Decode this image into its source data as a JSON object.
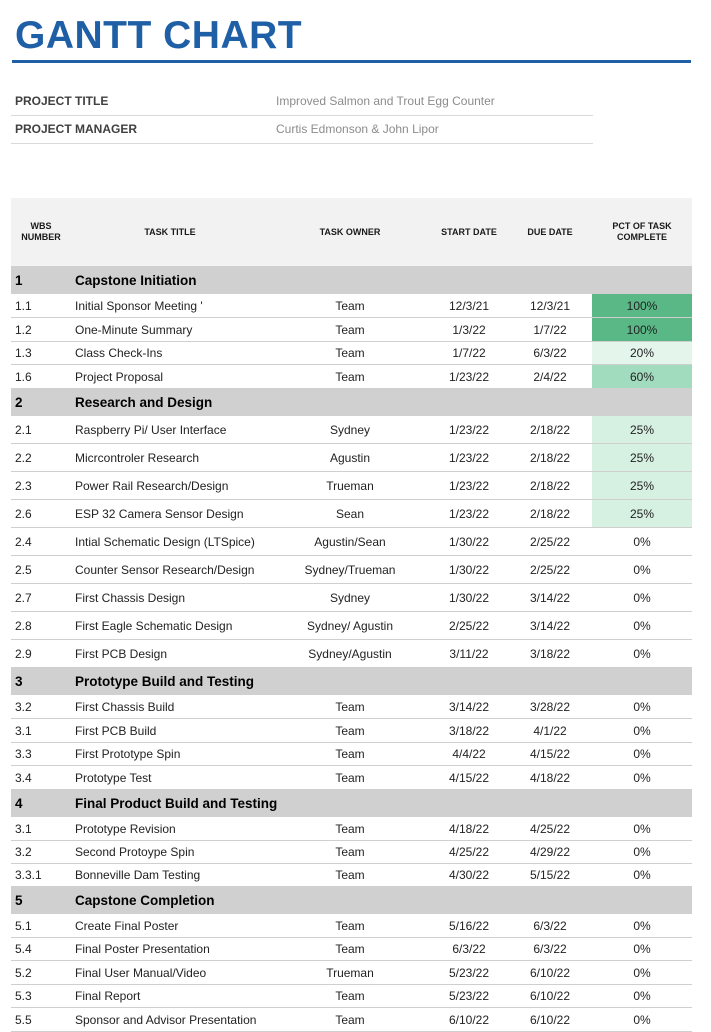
{
  "title": "GANTT CHART",
  "info": [
    {
      "label": "PROJECT TITLE",
      "value": "Improved Salmon and Trout Egg Counter"
    },
    {
      "label": "PROJECT MANAGER",
      "value": "Curtis Edmonson & John Lipor"
    }
  ],
  "headers": {
    "wbs": "WBS NUMBER",
    "title": "TASK TITLE",
    "owner": "TASK OWNER",
    "start": "START DATE",
    "due": "DUE DATE",
    "pct": "PCT OF TASK COMPLETE"
  },
  "colors": {
    "title": "#1f5fa6",
    "section": "#d0d0d0",
    "pct100": "#5ab887",
    "pct60": "#a2dcbe",
    "pct25": "#d6f0e2",
    "pct20": "#e4f5ec"
  },
  "rows": [
    {
      "type": "section",
      "wbs": "1",
      "title": "Capstone Initiation"
    },
    {
      "type": "task",
      "wbs": "1.1",
      "title": "Initial Sponsor Meeting '",
      "owner": "Team",
      "start": "12/3/21",
      "due": "12/3/21",
      "pct": "100%"
    },
    {
      "type": "task",
      "wbs": "1.2",
      "title": "One-Minute Summary",
      "owner": "Team",
      "start": "1/3/22",
      "due": "1/7/22",
      "pct": "100%"
    },
    {
      "type": "task",
      "wbs": "1.3",
      "title": "Class Check-Ins",
      "owner": "Team",
      "start": "1/7/22",
      "due": "6/3/22",
      "pct": "20%"
    },
    {
      "type": "task",
      "wbs": "1.6",
      "title": "Project Proposal",
      "owner": "Team",
      "start": "1/23/22",
      "due": "2/4/22",
      "pct": "60%"
    },
    {
      "type": "section",
      "wbs": "2",
      "title": "Research and Design"
    },
    {
      "type": "task",
      "wbs": "2.1",
      "title": "Raspberry Pi/ User Interface",
      "owner": "Sydney",
      "start": "1/23/22",
      "due": "2/18/22",
      "pct": "25%"
    },
    {
      "type": "task",
      "wbs": "2.2",
      "title": "Micrcontroler  Research",
      "owner": "Agustin",
      "start": "1/23/22",
      "due": "2/18/22",
      "pct": "25%"
    },
    {
      "type": "task",
      "wbs": "2.3",
      "title": "Power Rail Research/Design",
      "owner": "Trueman",
      "start": "1/23/22",
      "due": "2/18/22",
      "pct": "25%"
    },
    {
      "type": "task",
      "wbs": "2.6",
      "title": "ESP 32 Camera Sensor Design",
      "owner": "Sean",
      "start": "1/23/22",
      "due": "2/18/22",
      "pct": "25%"
    },
    {
      "type": "task",
      "wbs": "2.4",
      "title": "Intial Schematic Design (LTSpice)",
      "owner": "Agustin/Sean",
      "start": "1/30/22",
      "due": "2/25/22",
      "pct": "0%"
    },
    {
      "type": "task",
      "wbs": "2.5",
      "title": "Counter Sensor Research/Design",
      "owner": "Sydney/Trueman",
      "start": "1/30/22",
      "due": "2/25/22",
      "pct": "0%"
    },
    {
      "type": "task",
      "wbs": "2.7",
      "title": "First Chassis Design",
      "owner": "Sydney",
      "start": "1/30/22",
      "due": "3/14/22",
      "pct": "0%"
    },
    {
      "type": "task",
      "wbs": "2.8",
      "title": "First Eagle Schematic Design",
      "owner": "Sydney/ Agustin",
      "start": "2/25/22",
      "due": "3/14/22",
      "pct": "0%"
    },
    {
      "type": "task",
      "wbs": "2.9",
      "title": "First PCB Design",
      "owner": "Sydney/Agustin",
      "start": "3/11/22",
      "due": "3/18/22",
      "pct": "0%"
    },
    {
      "type": "section",
      "wbs": "3",
      "title": "Prototype Build and Testing"
    },
    {
      "type": "task",
      "wbs": "3.2",
      "title": "First Chassis Build",
      "owner": "Team",
      "start": "3/14/22",
      "due": "3/28/22",
      "pct": "0%"
    },
    {
      "type": "task",
      "wbs": "3.1",
      "title": "First PCB Build",
      "owner": "Team",
      "start": "3/18/22",
      "due": "4/1/22",
      "pct": "0%"
    },
    {
      "type": "task",
      "wbs": "3.3",
      "title": "First Prototype Spin",
      "owner": "Team",
      "start": "4/4/22",
      "due": "4/15/22",
      "pct": "0%"
    },
    {
      "type": "task",
      "wbs": "3.4",
      "title": "Prototype Test",
      "owner": "Team",
      "start": "4/15/22",
      "due": "4/18/22",
      "pct": "0%"
    },
    {
      "type": "section",
      "wbs": "4",
      "title": "Final Product Build and Testing"
    },
    {
      "type": "task",
      "wbs": "3.1",
      "title": "Prototype Revision",
      "owner": "Team",
      "start": "4/18/22",
      "due": "4/25/22",
      "pct": "0%"
    },
    {
      "type": "task",
      "wbs": "3.2",
      "title": "Second Protoype Spin",
      "owner": "Team",
      "start": "4/25/22",
      "due": "4/29/22",
      "pct": "0%"
    },
    {
      "type": "task",
      "wbs": "3.3.1",
      "title": "Bonneville Dam Testing",
      "owner": "Team",
      "start": "4/30/22",
      "due": "5/15/22",
      "pct": "0%"
    },
    {
      "type": "section",
      "wbs": "5",
      "title": "Capstone Completion"
    },
    {
      "type": "task",
      "wbs": "5.1",
      "title": "Create Final Poster",
      "owner": "Team",
      "start": "5/16/22",
      "due": "6/3/22",
      "pct": "0%"
    },
    {
      "type": "task",
      "wbs": "5.4",
      "title": "Final Poster Presentation",
      "owner": "Team",
      "start": "6/3/22",
      "due": "6/3/22",
      "pct": "0%"
    },
    {
      "type": "task",
      "wbs": "5.2",
      "title": "Final User Manual/Video",
      "owner": "Trueman",
      "start": "5/23/22",
      "due": "6/10/22",
      "pct": "0%"
    },
    {
      "type": "task",
      "wbs": "5.3",
      "title": "Final Report",
      "owner": "Team",
      "start": "5/23/22",
      "due": "6/10/22",
      "pct": "0%"
    },
    {
      "type": "task",
      "wbs": "5.5",
      "title": "Sponsor and Advisor Presentation",
      "owner": "Team",
      "start": "6/10/22",
      "due": "6/10/22",
      "pct": "0%"
    }
  ]
}
